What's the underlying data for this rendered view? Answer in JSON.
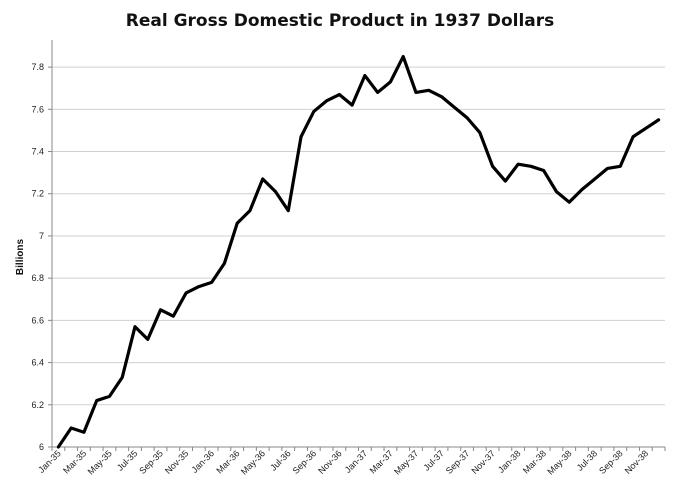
{
  "chart_data": {
    "type": "line",
    "title": "Real Gross Domestic Product in 1937 Dollars",
    "xlabel": "",
    "ylabel": "Billions",
    "ylim": [
      6,
      7.9
    ],
    "yticks": [
      6,
      6.2,
      6.4,
      6.6,
      6.8,
      7,
      7.2,
      7.4,
      7.6,
      7.8
    ],
    "ytick_labels": [
      "6",
      "6.2",
      "6.4",
      "6.6",
      "6.8",
      "7",
      "7.2",
      "7.4",
      "7.6",
      "7.8"
    ],
    "grid": "horizontal",
    "legend": "none",
    "line_color": "#000000",
    "xtick_labels": [
      "Jan-35",
      "Mar-35",
      "May-35",
      "Jul-35",
      "Sep-35",
      "Nov-35",
      "Jan-36",
      "Mar-36",
      "May-36",
      "Jul-36",
      "Sep-36",
      "Nov-36",
      "Jan-37",
      "Mar-37",
      "May-37",
      "Jul-37",
      "Sep-37",
      "Nov-37",
      "Jan-38",
      "Mar-38",
      "May-38",
      "Jul-38",
      "Sep-38",
      "Nov-38"
    ],
    "categories": [
      "Jan-35",
      "Feb-35",
      "Mar-35",
      "Apr-35",
      "May-35",
      "Jun-35",
      "Jul-35",
      "Aug-35",
      "Sep-35",
      "Oct-35",
      "Nov-35",
      "Dec-35",
      "Jan-36",
      "Feb-36",
      "Mar-36",
      "Apr-36",
      "May-36",
      "Jun-36",
      "Jul-36",
      "Aug-36",
      "Sep-36",
      "Oct-36",
      "Nov-36",
      "Dec-36",
      "Jan-37",
      "Feb-37",
      "Mar-37",
      "Apr-37",
      "May-37",
      "Jun-37",
      "Jul-37",
      "Aug-37",
      "Sep-37",
      "Oct-37",
      "Nov-37",
      "Dec-37",
      "Jan-38",
      "Feb-38",
      "Mar-38",
      "Apr-38",
      "May-38",
      "Jun-38",
      "Jul-38",
      "Aug-38",
      "Sep-38",
      "Oct-38",
      "Nov-38",
      "Dec-38"
    ],
    "values": [
      6.0,
      6.09,
      6.07,
      6.22,
      6.24,
      6.33,
      6.57,
      6.51,
      6.65,
      6.62,
      6.73,
      6.76,
      6.78,
      6.87,
      7.06,
      7.12,
      7.27,
      7.21,
      7.12,
      7.47,
      7.59,
      7.64,
      7.67,
      7.62,
      7.76,
      7.68,
      7.73,
      7.85,
      7.68,
      7.69,
      7.66,
      7.61,
      7.56,
      7.49,
      7.33,
      7.26,
      7.34,
      7.33,
      7.31,
      7.21,
      7.16,
      7.22,
      7.27,
      7.32,
      7.33,
      7.47,
      7.51,
      7.55
    ]
  }
}
